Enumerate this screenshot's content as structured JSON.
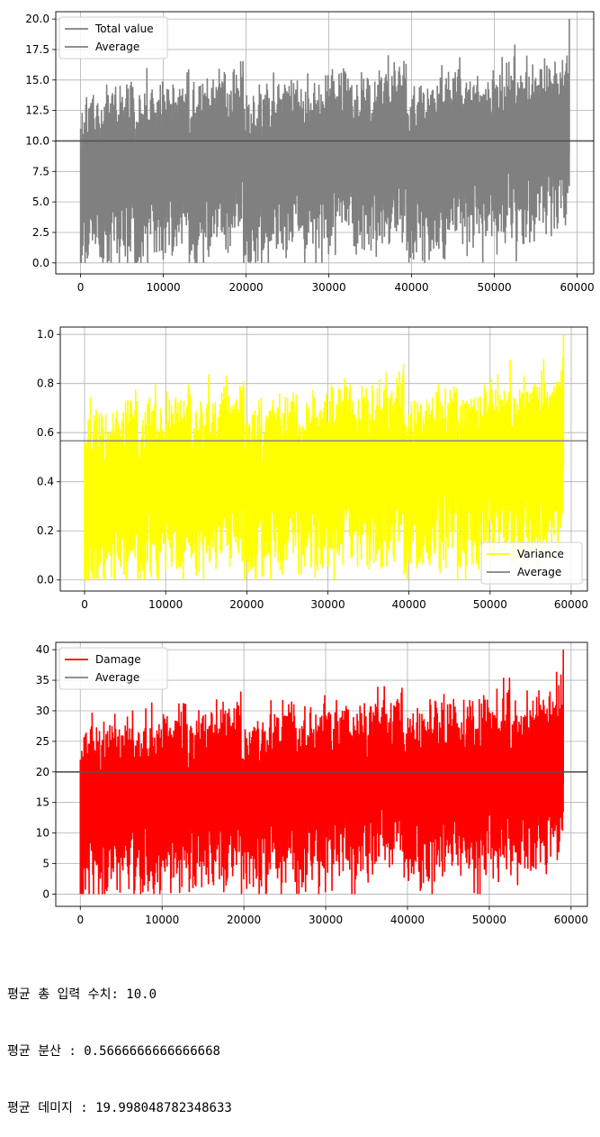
{
  "chart_data": [
    {
      "type": "line",
      "x_range": [
        0,
        59049
      ],
      "xlim": [
        -3000,
        62000
      ],
      "ylim": [
        -0.9,
        20.6
      ],
      "xticks": [
        0,
        10000,
        20000,
        30000,
        40000,
        50000,
        60000
      ],
      "yticks": [
        0.0,
        2.5,
        5.0,
        7.5,
        10.0,
        12.5,
        15.0,
        17.5,
        20.0
      ],
      "ytick_labels": [
        "0.0",
        "2.5",
        "5.0",
        "7.5",
        "10.0",
        "12.5",
        "15.0",
        "17.5",
        "20.0"
      ],
      "grid": true,
      "legend_position": "top-left",
      "series": [
        {
          "name": "Total value",
          "color": "#808080",
          "min": 0.0,
          "max": 20.0
        },
        {
          "name": "Average",
          "color": "#808080",
          "value": 10.0
        }
      ],
      "colors": {
        "series": "#808080",
        "average": "#555555"
      }
    },
    {
      "type": "line",
      "x_range": [
        0,
        59049
      ],
      "xlim": [
        -3000,
        62000
      ],
      "ylim": [
        -0.045,
        1.03
      ],
      "xticks": [
        0,
        10000,
        20000,
        30000,
        40000,
        50000,
        60000
      ],
      "yticks": [
        0.0,
        0.2,
        0.4,
        0.6,
        0.8,
        1.0
      ],
      "ytick_labels": [
        "0.0",
        "0.2",
        "0.4",
        "0.6",
        "0.8",
        "1.0"
      ],
      "grid": true,
      "legend_position": "bottom-right",
      "series": [
        {
          "name": "Variance",
          "color": "#ffff00",
          "min": 0.0,
          "max": 1.0
        },
        {
          "name": "Average",
          "color": "#808080",
          "value": 0.5666666666666668
        }
      ],
      "colors": {
        "series": "#ffff00",
        "average": "#8c8c8c"
      }
    },
    {
      "type": "line",
      "x_range": [
        0,
        59049
      ],
      "xlim": [
        -3000,
        62000
      ],
      "ylim": [
        -2.0,
        41.2
      ],
      "xticks": [
        0,
        10000,
        20000,
        30000,
        40000,
        50000,
        60000
      ],
      "yticks": [
        0,
        5,
        10,
        15,
        20,
        25,
        30,
        35,
        40
      ],
      "ytick_labels": [
        "0",
        "5",
        "10",
        "15",
        "20",
        "25",
        "30",
        "35",
        "40"
      ],
      "grid": true,
      "legend_position": "top-left",
      "series": [
        {
          "name": "Damage",
          "color": "#ff0000",
          "min": 0.0,
          "max": 40.0
        },
        {
          "name": "Average",
          "color": "#808080",
          "value": 19.998048782348633
        }
      ],
      "colors": {
        "series": "#ff0000",
        "average": "#555555"
      }
    }
  ],
  "output": {
    "line1": "평균 총 입력 수치: 10.0",
    "line2": "평균 분산 : 0.5666666666666668",
    "line3": "평균 데미지 : 19.998048782348633"
  }
}
